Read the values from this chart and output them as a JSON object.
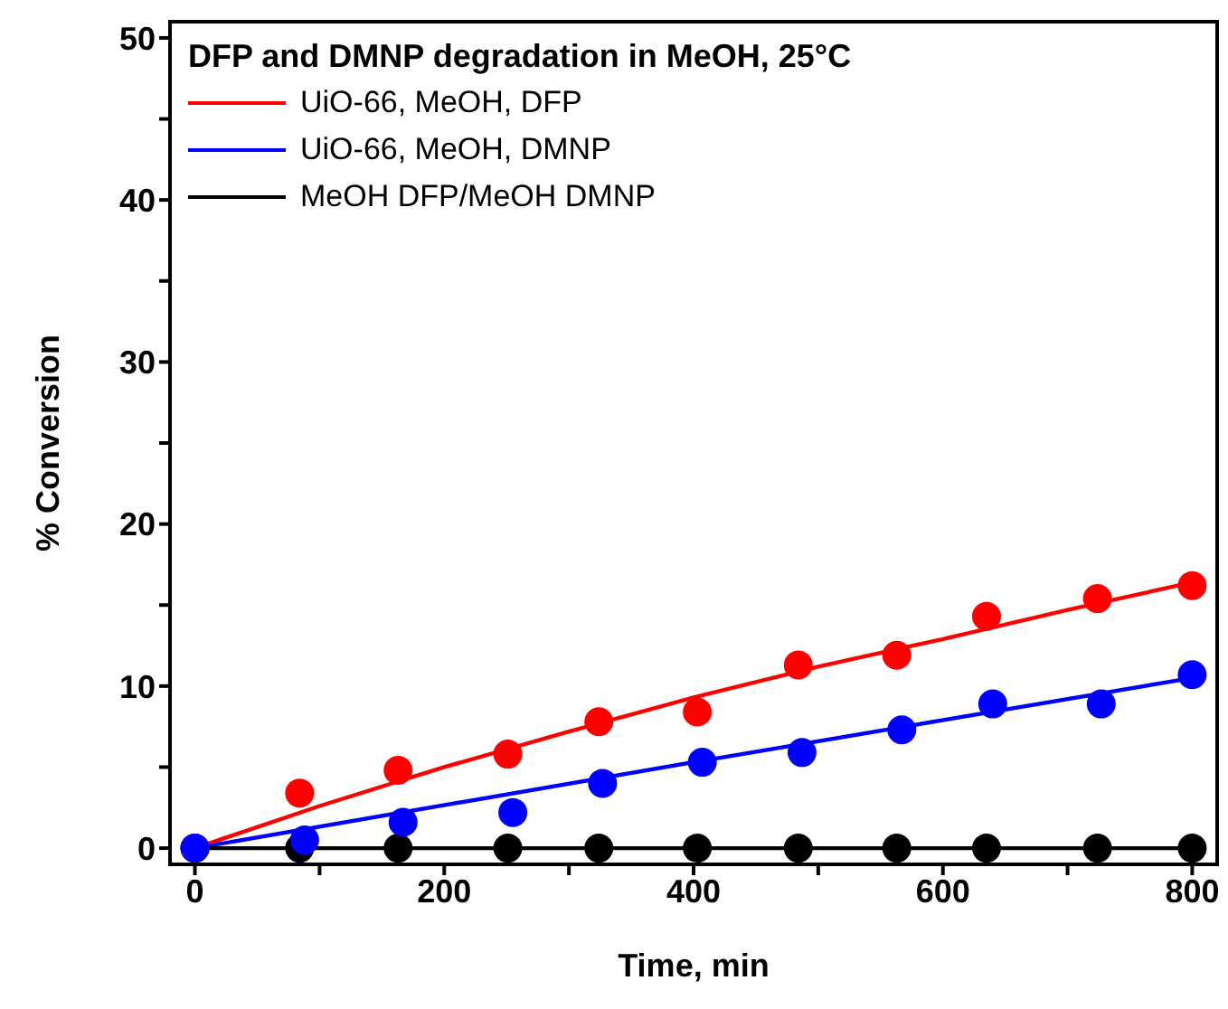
{
  "chart_data": {
    "type": "scatter",
    "xlabel": "Time, min",
    "ylabel": "% Conversion",
    "legend_title": "DFP and DMNP degradation in MeOH, 25°C",
    "legend": "top left",
    "marker": "circle",
    "grid": false,
    "xlim": [
      -20,
      820
    ],
    "ylim": [
      -1,
      51
    ],
    "xticks": [
      0,
      {
        "value": 100,
        "label": null
      },
      200,
      {
        "value": 300,
        "label": null
      },
      400,
      {
        "value": 500,
        "label": null
      },
      600,
      {
        "value": 700,
        "label": null
      },
      800
    ],
    "yticks": [
      0,
      {
        "value": 5,
        "label": null
      },
      10,
      {
        "value": 15,
        "label": null
      },
      20,
      {
        "value": 25,
        "label": null
      },
      30,
      {
        "value": 35,
        "label": null
      },
      40,
      {
        "value": 45,
        "label": null
      },
      50
    ],
    "series": [
      {
        "type": "line",
        "marker": "none",
        "line_style": "solid",
        "name": "UiO-66, MeOH, DFP",
        "color": "#ff0000",
        "x": [
          0,
          100,
          200,
          300,
          400,
          500,
          600,
          700,
          800
        ],
        "values": [
          0,
          2.6,
          5.0,
          7.2,
          9.3,
          11.2,
          12.9,
          14.7,
          16.4
        ]
      },
      {
        "type": "line",
        "marker": "none",
        "line_style": "solid",
        "name": "UiO-66, MeOH, DMNP",
        "color": "#0000ff",
        "x": [
          0,
          400,
          800
        ],
        "values": [
          0,
          5.3,
          10.5
        ]
      },
      {
        "type": "line",
        "marker": "none",
        "line_style": "solid",
        "name": "MeOH DFP/MeOH DMNP",
        "color": "#000000",
        "x": [
          0,
          800
        ],
        "values": [
          0,
          0
        ]
      },
      {
        "color": "#000000",
        "x": [
          0,
          84,
          163,
          251,
          324,
          403,
          484,
          563,
          635,
          724,
          800
        ],
        "values": [
          0,
          0,
          0,
          0,
          0,
          0,
          0,
          0,
          0,
          0,
          0
        ]
      },
      {
        "color": "#ff0000",
        "x": [
          0,
          84,
          163,
          251,
          324,
          403,
          484,
          563,
          635,
          724,
          800
        ],
        "values": [
          0,
          3.4,
          4.8,
          5.8,
          7.8,
          8.4,
          11.3,
          11.9,
          14.3,
          15.4,
          16.2
        ]
      },
      {
        "color": "#0000ff",
        "x": [
          0,
          88,
          167,
          255,
          327,
          407,
          487,
          567,
          640,
          727,
          800
        ],
        "values": [
          0,
          0.5,
          1.6,
          2.2,
          4.0,
          5.3,
          5.9,
          7.3,
          8.9,
          8.9,
          10.7
        ]
      }
    ]
  }
}
